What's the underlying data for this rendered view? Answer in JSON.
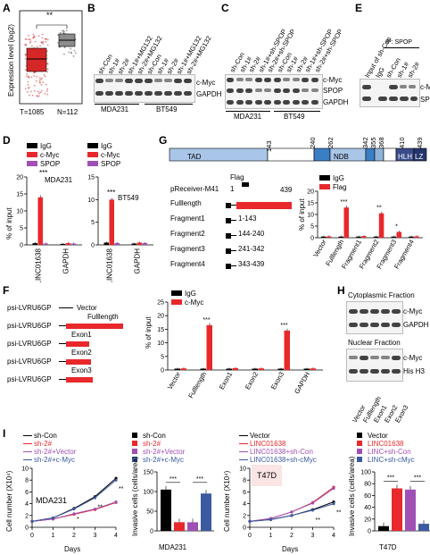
{
  "panel_labels": {
    "a": "A",
    "b": "B",
    "c": "C",
    "d": "D",
    "e": "E",
    "f": "F",
    "g": "G",
    "h": "H",
    "i": "I"
  },
  "panelA": {
    "ylabel": "Expression level (log2)",
    "sig": "**",
    "n_tumor": "T=1085",
    "n_normal": "N=112",
    "colors": {
      "tumor": "#d62728",
      "normal": "#7f7f7f"
    }
  },
  "panelB": {
    "lanes": [
      "sh-Con",
      "sh-1#",
      "sh-2#",
      "sh-1#+MG132",
      "sh-2#+MG132",
      "sh-Con",
      "sh-1#",
      "sh-2#",
      "sh-1#+MG132",
      "sh-2#+MG132"
    ],
    "rows": [
      "c-Myc",
      "GAPDH"
    ],
    "cells": [
      "MDA231",
      "BT549"
    ]
  },
  "panelC": {
    "lanes": [
      "sh-Con",
      "sh-1#",
      "sh-2#",
      "sh-1#+sh-SPOP",
      "sh-2#+sh-SPOP",
      "sh-Con",
      "sh-1#",
      "sh-2#",
      "sh-1#+sh-SPOP",
      "sh-2#+sh-SPOP"
    ],
    "rows": [
      "c-Myc",
      "SPOP",
      "GAPDH"
    ],
    "cells": [
      "MDA231",
      "BT549"
    ]
  },
  "panelE": {
    "lanes": [
      "Input of sh-Con",
      "IgG",
      "sh-Con",
      "sh-1#",
      "sh-2#"
    ],
    "ip_label": "IP: SPOP",
    "rows": [
      "c-M",
      "SPO"
    ]
  },
  "panelD": {
    "legend": [
      "IgG",
      "c-Myc",
      "SPOP"
    ],
    "ylabel": "% of input",
    "sig": "***",
    "colors": [
      "#000000",
      "#e8282b",
      "#a050b4"
    ]
  },
  "panelG": {
    "domain_ticks": [
      "143",
      "240",
      "262",
      "342",
      "355",
      "368",
      "410",
      "439"
    ],
    "domains": [
      "TAD",
      "NDB",
      "HLH",
      "LZ"
    ],
    "vector": "pReceiver-M41",
    "flag": "Flag",
    "construct_start": "1",
    "construct_end": "439",
    "fragments": [
      {
        "name": "Fulllength",
        "range": "439"
      },
      {
        "name": "Fragment1",
        "range": "1-143"
      },
      {
        "name": "Fragment2",
        "range": "144-240"
      },
      {
        "name": "Fragment3",
        "range": "241-342"
      },
      {
        "name": "Fragment4",
        "range": "343-439"
      }
    ],
    "legend": [
      "IgG",
      "Flag"
    ],
    "ylabel": "% of input"
  },
  "panelF": {
    "constructs": [
      {
        "vector": "psi-LVRU6GP",
        "insert": "Vector"
      },
      {
        "vector": "psi-LVRU6GP",
        "insert": "Fulllength"
      },
      {
        "vector": "psi-LVRU6GP",
        "insert": "Exon1"
      },
      {
        "vector": "psi-LVRU6GP",
        "insert": "Exon2"
      },
      {
        "vector": "psi-LVRU6GP",
        "insert": "Exon3"
      }
    ],
    "legend": [
      "IgG",
      "c-Myc"
    ],
    "ylabel": "% of input"
  },
  "panelH": {
    "cyto_title": "Cytoplasmic Fraction",
    "nuc_title": "Nuclear Fraction",
    "cyto_rows": [
      "c-Myc",
      "GAPDH"
    ],
    "nuc_rows": [
      "c-Myc",
      "His H3"
    ],
    "lanes": [
      "Vector",
      "Fulllength",
      "Exon1",
      "Exon2",
      "Exon3"
    ]
  },
  "panelI": {
    "growth1": {
      "legend": [
        "sh-Con",
        "sh-2#",
        "sh-2#+Vector",
        "sh-2#+c-Myc"
      ],
      "cell": "MDA231",
      "ylabel": "Cell number (X10⁴)",
      "xlabel": "Days",
      "colors": [
        "#000000",
        "#e8282b",
        "#a050b4",
        "#3c5aa0"
      ]
    },
    "invasion1": {
      "legend": [
        "sh-Con",
        "sh-2#",
        "sh-2#+Vector",
        "sh-2#+c-Myc"
      ],
      "ylabel": "Invasive cells (cells/area)",
      "cell": "MDA231",
      "sig": "***",
      "colors": [
        "#000000",
        "#e8282b",
        "#a050b4",
        "#3c5aa0"
      ]
    },
    "growth2": {
      "legend": [
        "Vector",
        "LINC01638",
        "LINC01638+sh-Con",
        "LINC01638+sh-cMyc"
      ],
      "cell": "T47D",
      "ylabel": "Cell number (X10⁴)",
      "xlabel": "Days",
      "colors": [
        "#000000",
        "#e8282b",
        "#a050b4",
        "#3c5aa0"
      ]
    },
    "invasion2": {
      "legend": [
        "Vector",
        "LINC01638",
        "LINC+sh-Con",
        "LINC+sh-cMyc"
      ],
      "ylabel": "Invasive cells (cells/area)",
      "cell": "T47D",
      "sig": "***",
      "colors": [
        "#000000",
        "#e8282b",
        "#a050b4",
        "#3c5aa0"
      ]
    }
  },
  "chart_data": [
    {
      "id": "D-MDA231",
      "type": "bar",
      "categories": [
        "LINC01638",
        "GAPDH"
      ],
      "series": [
        {
          "name": "IgG",
          "values": [
            0.5,
            0.3
          ]
        },
        {
          "name": "c-Myc",
          "values": [
            14,
            0.5
          ]
        },
        {
          "name": "SPOP",
          "values": [
            0.4,
            0.4
          ]
        }
      ],
      "ylim": [
        0,
        20
      ],
      "yticks": [
        "0",
        "5",
        "10",
        "15",
        "20"
      ],
      "annotation": "MDA231",
      "sig": "***"
    },
    {
      "id": "D-BT549",
      "type": "bar",
      "categories": [
        "LINC01638",
        "GAPDH"
      ],
      "series": [
        {
          "name": "IgG",
          "values": [
            0.5,
            0.3
          ]
        },
        {
          "name": "c-Myc",
          "values": [
            10,
            0.5
          ]
        },
        {
          "name": "SPOP",
          "values": [
            0.4,
            0.4
          ]
        }
      ],
      "ylim": [
        0,
        15
      ],
      "yticks": [
        "0",
        "5",
        "10",
        "15"
      ],
      "annotation": "BT549",
      "sig": "***"
    },
    {
      "id": "G-bar",
      "type": "bar",
      "categories": [
        "Vector",
        "Fulllength",
        "Fragment1",
        "Fragment2",
        "Fragment3",
        "Fragment4"
      ],
      "series": [
        {
          "name": "IgG",
          "values": [
            0.5,
            0.5,
            0.5,
            0.5,
            0.5,
            0.5
          ]
        },
        {
          "name": "Flag",
          "values": [
            0.6,
            13,
            0.7,
            10.5,
            2.5,
            0.6
          ]
        }
      ],
      "ylim": [
        0,
        20
      ],
      "yticks": [
        "0",
        "5",
        "10",
        "15",
        "20"
      ],
      "sig": [
        "",
        "***",
        "",
        "**",
        "*",
        ""
      ]
    },
    {
      "id": "F-bar",
      "type": "bar",
      "categories": [
        "Vector",
        "Fulllength",
        "Exon1",
        "Exon2",
        "Exon3",
        "GAPDH"
      ],
      "series": [
        {
          "name": "IgG",
          "values": [
            0.5,
            0.5,
            0.5,
            0.5,
            0.5,
            0.5
          ]
        },
        {
          "name": "c-Myc",
          "values": [
            0.6,
            16.5,
            0.7,
            0.6,
            14.5,
            0.6
          ]
        }
      ],
      "ylim": [
        0,
        25
      ],
      "yticks": [
        "0",
        "5",
        "10",
        "15",
        "20",
        "25"
      ],
      "sig": [
        "",
        "***",
        "",
        "",
        "***",
        ""
      ]
    },
    {
      "id": "I-growth1",
      "type": "line",
      "x": [
        0,
        1,
        2,
        3,
        4
      ],
      "series": [
        {
          "name": "sh-Con",
          "values": [
            1,
            1.6,
            3.2,
            5.2,
            8.3
          ]
        },
        {
          "name": "sh-2#",
          "values": [
            1,
            1.4,
            2.2,
            3.0,
            4.2
          ]
        },
        {
          "name": "sh-2#+Vector",
          "values": [
            1,
            1.4,
            2.3,
            3.1,
            4.3
          ]
        },
        {
          "name": "sh-2#+c-Myc",
          "values": [
            1,
            1.6,
            3.1,
            5.0,
            8.0
          ]
        }
      ],
      "ylim": [
        0,
        10
      ],
      "yticks": [
        "0",
        "2",
        "4",
        "6",
        "8",
        "10"
      ],
      "xticks": [
        "0",
        "1",
        "2",
        "3",
        "4"
      ],
      "sig": [
        "",
        "",
        "*",
        "**",
        "**"
      ]
    },
    {
      "id": "I-inv1",
      "type": "bar",
      "categories": [
        "sh-Con",
        "sh-2#",
        "sh-2#+Vector",
        "sh-2#+c-Myc"
      ],
      "values": [
        105,
        22,
        22,
        95
      ],
      "ylim": [
        0,
        150
      ],
      "yticks": [
        "0",
        "50",
        "100",
        "150"
      ]
    },
    {
      "id": "I-growth2",
      "type": "line",
      "x": [
        0,
        1,
        2,
        3,
        4
      ],
      "series": [
        {
          "name": "Vector",
          "values": [
            1,
            1.3,
            2.0,
            3.0,
            4.3
          ]
        },
        {
          "name": "LINC01638",
          "values": [
            1,
            1.5,
            2.6,
            4.2,
            6.8
          ]
        },
        {
          "name": "LINC01638+sh-Con",
          "values": [
            1,
            1.5,
            2.6,
            4.1,
            6.6
          ]
        },
        {
          "name": "LINC01638+sh-cMyc",
          "values": [
            1,
            1.3,
            2.0,
            2.9,
            4.0
          ]
        }
      ],
      "ylim": [
        0,
        10
      ],
      "yticks": [
        "0",
        "2",
        "4",
        "6",
        "8",
        "10"
      ],
      "xticks": [
        "0",
        "1",
        "2",
        "3",
        "4"
      ],
      "sig": [
        "",
        "",
        "",
        "**",
        "***"
      ]
    },
    {
      "id": "I-inv2",
      "type": "bar",
      "categories": [
        "Vector",
        "LINC01638",
        "LINC+sh-Con",
        "LINC+sh-cMyc"
      ],
      "values": [
        8,
        72,
        70,
        12
      ],
      "ylim": [
        0,
        100
      ],
      "yticks": [
        "0",
        "20",
        "40",
        "60",
        "80",
        "100"
      ]
    }
  ]
}
